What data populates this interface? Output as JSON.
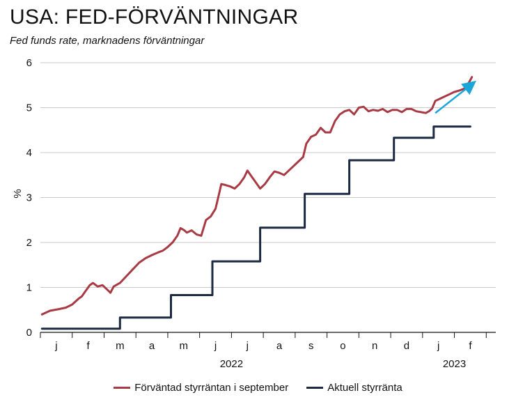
{
  "title": "USA: FED-FÖRVÄNTNINGAR",
  "subtitle": "Fed funds rate, marknadens förväntningar",
  "chart_data": {
    "type": "line",
    "title": "USA: FED-FÖRVÄNTNINGAR",
    "subtitle": "Fed funds rate, marknadens förväntningar",
    "ylabel": "%",
    "xlabel": "",
    "ylim": [
      0,
      6
    ],
    "yticks": [
      "0",
      "1",
      "2",
      "3",
      "4",
      "5",
      "6"
    ],
    "xlim": [
      0,
      14.3
    ],
    "month_labels": [
      "j",
      "f",
      "m",
      "a",
      "m",
      "j",
      "j",
      "a",
      "s",
      "o",
      "n",
      "d",
      "j",
      "f"
    ],
    "year_labels": [
      {
        "label": "2022",
        "month_index": 6
      },
      {
        "label": "2023",
        "month_index": 13
      }
    ],
    "grid": true,
    "legend_position": "bottom",
    "series": [
      {
        "name": "Förväntad styrräntan i september",
        "color": "#a83a44",
        "points": [
          [
            0.05,
            0.4
          ],
          [
            0.3,
            0.48
          ],
          [
            0.6,
            0.52
          ],
          [
            0.8,
            0.55
          ],
          [
            1.0,
            0.62
          ],
          [
            1.2,
            0.75
          ],
          [
            1.3,
            0.8
          ],
          [
            1.45,
            0.95
          ],
          [
            1.55,
            1.05
          ],
          [
            1.65,
            1.1
          ],
          [
            1.8,
            1.02
          ],
          [
            1.95,
            1.05
          ],
          [
            2.1,
            0.95
          ],
          [
            2.2,
            0.88
          ],
          [
            2.3,
            1.02
          ],
          [
            2.5,
            1.1
          ],
          [
            2.7,
            1.25
          ],
          [
            2.9,
            1.4
          ],
          [
            3.1,
            1.55
          ],
          [
            3.3,
            1.65
          ],
          [
            3.5,
            1.72
          ],
          [
            3.7,
            1.78
          ],
          [
            3.85,
            1.82
          ],
          [
            4.0,
            1.9
          ],
          [
            4.15,
            2.0
          ],
          [
            4.3,
            2.15
          ],
          [
            4.4,
            2.32
          ],
          [
            4.5,
            2.28
          ],
          [
            4.6,
            2.22
          ],
          [
            4.75,
            2.27
          ],
          [
            4.9,
            2.18
          ],
          [
            5.05,
            2.15
          ],
          [
            5.2,
            2.5
          ],
          [
            5.35,
            2.58
          ],
          [
            5.5,
            2.75
          ],
          [
            5.6,
            3.05
          ],
          [
            5.68,
            3.3
          ],
          [
            5.8,
            3.28
          ],
          [
            5.95,
            3.25
          ],
          [
            6.1,
            3.2
          ],
          [
            6.25,
            3.3
          ],
          [
            6.4,
            3.45
          ],
          [
            6.5,
            3.6
          ],
          [
            6.6,
            3.5
          ],
          [
            6.75,
            3.35
          ],
          [
            6.9,
            3.2
          ],
          [
            7.05,
            3.3
          ],
          [
            7.2,
            3.45
          ],
          [
            7.35,
            3.58
          ],
          [
            7.5,
            3.55
          ],
          [
            7.65,
            3.5
          ],
          [
            7.8,
            3.6
          ],
          [
            7.95,
            3.7
          ],
          [
            8.1,
            3.8
          ],
          [
            8.25,
            3.9
          ],
          [
            8.35,
            4.2
          ],
          [
            8.5,
            4.35
          ],
          [
            8.65,
            4.4
          ],
          [
            8.8,
            4.55
          ],
          [
            8.95,
            4.45
          ],
          [
            9.1,
            4.45
          ],
          [
            9.25,
            4.7
          ],
          [
            9.4,
            4.85
          ],
          [
            9.55,
            4.92
          ],
          [
            9.7,
            4.95
          ],
          [
            9.85,
            4.85
          ],
          [
            10.0,
            5.0
          ],
          [
            10.15,
            5.02
          ],
          [
            10.3,
            4.92
          ],
          [
            10.45,
            4.95
          ],
          [
            10.6,
            4.93
          ],
          [
            10.75,
            4.97
          ],
          [
            10.9,
            4.9
          ],
          [
            11.05,
            4.95
          ],
          [
            11.2,
            4.95
          ],
          [
            11.35,
            4.9
          ],
          [
            11.5,
            4.97
          ],
          [
            11.65,
            4.97
          ],
          [
            11.8,
            4.92
          ],
          [
            11.95,
            4.9
          ],
          [
            12.1,
            4.88
          ],
          [
            12.2,
            4.92
          ],
          [
            12.3,
            4.98
          ],
          [
            12.4,
            5.15
          ],
          [
            12.55,
            5.2
          ],
          [
            12.7,
            5.25
          ],
          [
            12.85,
            5.3
          ],
          [
            13.0,
            5.35
          ],
          [
            13.15,
            5.38
          ],
          [
            13.3,
            5.42
          ],
          [
            13.45,
            5.55
          ],
          [
            13.55,
            5.68
          ]
        ]
      },
      {
        "name": "Aktuell styrränta",
        "color": "#1c2942",
        "points": [
          [
            0.05,
            0.08
          ],
          [
            2.5,
            0.08
          ],
          [
            2.5,
            0.33
          ],
          [
            4.1,
            0.33
          ],
          [
            4.1,
            0.83
          ],
          [
            5.4,
            0.83
          ],
          [
            5.4,
            1.58
          ],
          [
            6.9,
            1.58
          ],
          [
            6.9,
            2.33
          ],
          [
            8.3,
            2.33
          ],
          [
            8.3,
            3.08
          ],
          [
            9.7,
            3.08
          ],
          [
            9.7,
            3.83
          ],
          [
            11.1,
            3.83
          ],
          [
            11.1,
            4.33
          ],
          [
            12.35,
            4.33
          ],
          [
            12.35,
            4.58
          ],
          [
            13.5,
            4.58
          ]
        ]
      }
    ],
    "annotations": [
      {
        "type": "arrow",
        "color": "#1aa6d9",
        "from": [
          12.4,
          4.88
        ],
        "to": [
          13.6,
          5.55
        ]
      }
    ]
  }
}
